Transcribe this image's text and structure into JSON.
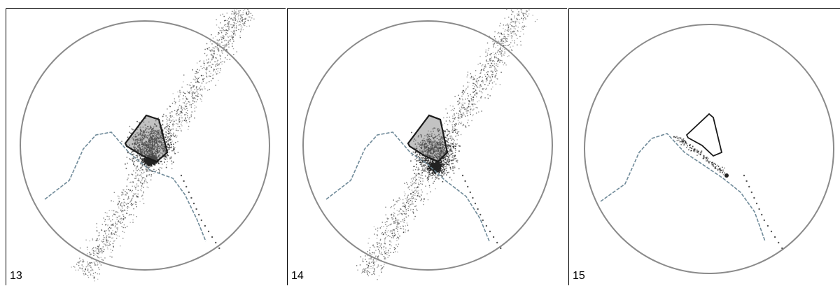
{
  "panels": [
    {
      "label": "13",
      "scatter": "full",
      "polygon": "filled"
    },
    {
      "label": "14",
      "scatter": "full",
      "polygon": "filled"
    },
    {
      "label": "15",
      "scatter": "minimal",
      "polygon": "outline"
    }
  ],
  "colors": {
    "circle": "#8a8a8a",
    "boundary": "#6f8a99",
    "points": "#222222",
    "polygon": "#1a1a1a"
  }
}
